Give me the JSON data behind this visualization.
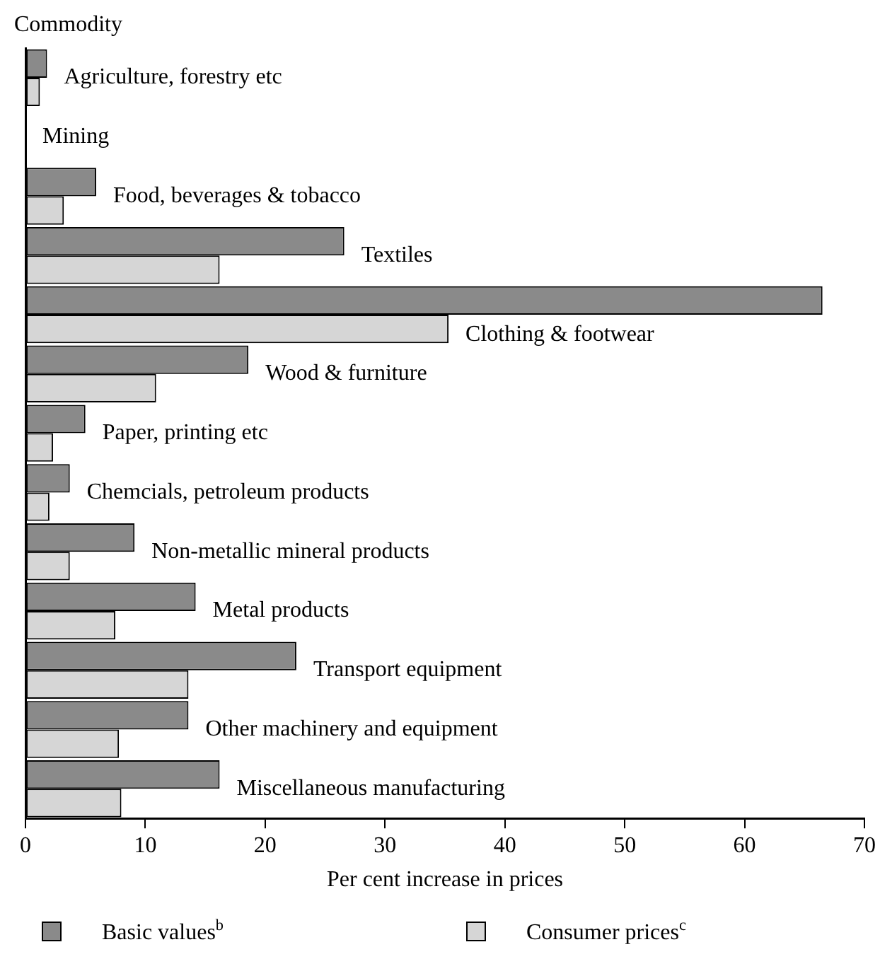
{
  "chart_data": {
    "type": "bar",
    "orientation": "horizontal",
    "ylabel": "Commodity",
    "xlabel": "Per cent increase in prices",
    "categories": [
      "Agriculture, forestry etc",
      "Mining",
      "Food, beverages & tobacco",
      "Textiles",
      "Clothing & footwear",
      "Wood & furniture",
      "Paper, printing etc",
      "Chemcials, petroleum products",
      "Non-metallic mineral products",
      "Metal products",
      "Transport equipment",
      "Other machinery and equipment",
      "Miscellaneous manufacturing"
    ],
    "series": [
      {
        "name": "Basic values$^{b}$",
        "color": "#8a8a8a",
        "values": [
          1.8,
          0,
          5.9,
          26.6,
          66.5,
          18.6,
          5.0,
          3.7,
          9.1,
          14.2,
          22.6,
          13.6,
          16.2
        ]
      },
      {
        "name": "Consumer prices$^{c}$",
        "color": "#d6d6d6",
        "values": [
          1.2,
          0,
          3.2,
          16.2,
          35.3,
          10.9,
          2.3,
          2.0,
          3.7,
          7.5,
          13.6,
          7.8,
          8.0
        ]
      }
    ],
    "xlim": [
      0,
      70
    ],
    "xticks": [
      0,
      10,
      20,
      30,
      40,
      50,
      60,
      70
    ],
    "grid": false,
    "legend": "bottom"
  }
}
